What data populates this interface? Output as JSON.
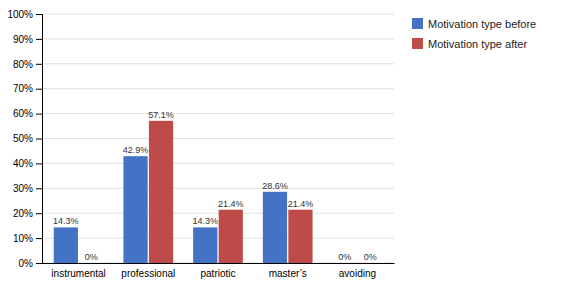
{
  "chart_data": {
    "type": "bar",
    "categories": [
      "instrumental",
      "professional",
      "patriotic",
      "master’s",
      "avoiding"
    ],
    "series": [
      {
        "name": "Motivation type before",
        "color": "#4472C4",
        "values": [
          14.3,
          42.9,
          14.3,
          28.6,
          0.0
        ],
        "value_labels": [
          "14.3%",
          "42.9%",
          "14.3%",
          "28.6%",
          "0%"
        ]
      },
      {
        "name": "Motivation type after",
        "color": "#BE4B48",
        "values": [
          0.0,
          57.1,
          21.4,
          21.4,
          0.0
        ],
        "value_labels": [
          "0%",
          "57.1%",
          "21.4%",
          "21.4%",
          "0%"
        ]
      }
    ],
    "ylim": [
      0,
      100
    ],
    "yticks": [
      {
        "value": 0,
        "label": "0%"
      },
      {
        "value": 10,
        "label": "10%"
      },
      {
        "value": 20,
        "label": "20%"
      },
      {
        "value": 30,
        "label": "30%"
      },
      {
        "value": 40,
        "label": "40%"
      },
      {
        "value": 50,
        "label": "50%"
      },
      {
        "value": 60,
        "label": "60%"
      },
      {
        "value": 70,
        "label": "70%"
      },
      {
        "value": 80,
        "label": "80%"
      },
      {
        "value": 90,
        "label": "90%"
      },
      {
        "value": 100,
        "label": "100%"
      }
    ],
    "grid": true,
    "legend": "upper right",
    "data_labels": true
  }
}
